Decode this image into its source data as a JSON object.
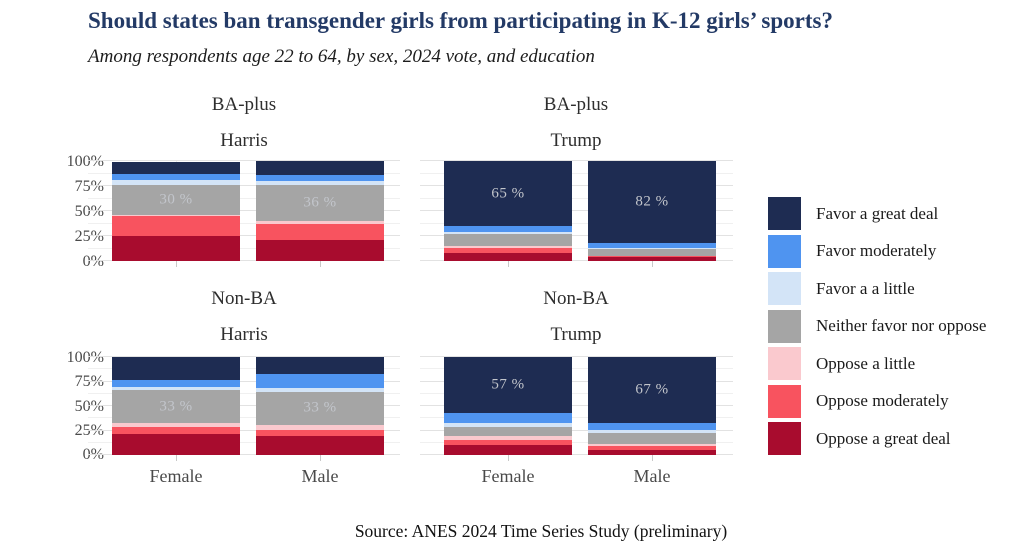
{
  "title": "Should states ban transgender girls from participating in K-12 girls’ sports?",
  "subtitle": "Among respondents age 22 to 64, by sex, 2024 vote, and education",
  "caption": "Source: ANES 2024 Time Series Study (preliminary)",
  "axis": {
    "y_ticks": [
      "100%",
      "75%",
      "50%",
      "25%",
      "0%"
    ],
    "x_labels": [
      "Female",
      "Male"
    ]
  },
  "legend": {
    "items": [
      {
        "label": "Favor a great deal",
        "color": "#1e2c52"
      },
      {
        "label": "Favor moderately",
        "color": "#4f94f0"
      },
      {
        "label": "Favor a a little",
        "color": "#d3e4f7"
      },
      {
        "label": "Neither favor nor oppose",
        "color": "#a5a5a5"
      },
      {
        "label": "Oppose a little",
        "color": "#fac9ce"
      },
      {
        "label": "Oppose moderately",
        "color": "#f8535f"
      },
      {
        "label": "Oppose a great deal",
        "color": "#a80c2e"
      }
    ]
  },
  "chart_data": {
    "type": "bar",
    "stacked": true,
    "units": "percent",
    "ylim": [
      0,
      100
    ],
    "y_major_percent": [
      0,
      25,
      50,
      75,
      100
    ],
    "y_minor_percent": [
      12.5,
      37.5,
      62.5,
      87.5
    ],
    "stack_order_bottom_to_top": [
      "Oppose a great deal",
      "Oppose moderately",
      "Oppose a little",
      "Neither favor nor oppose",
      "Favor a a little",
      "Favor moderately",
      "Favor a great deal"
    ],
    "colors": {
      "Favor a great deal": "#1e2c52",
      "Favor moderately": "#4f94f0",
      "Favor a a little": "#d3e4f7",
      "Neither favor nor oppose": "#a5a5a5",
      "Oppose a little": "#fac9ce",
      "Oppose moderately": "#f8535f",
      "Oppose a great deal": "#a80c2e"
    },
    "facets": [
      {
        "education": "BA-plus",
        "vote": "Harris",
        "bars": [
          {
            "sex": "Female",
            "values": [
              25,
              20,
              1,
              30,
              5,
              6,
              12
            ],
            "label": {
              "text": "30 %",
              "segment_index": 3
            }
          },
          {
            "sex": "Male",
            "values": [
              21,
              16,
              3,
              36,
              4,
              6,
              14
            ],
            "label": {
              "text": "36 %",
              "segment_index": 3
            }
          }
        ]
      },
      {
        "education": "BA-plus",
        "vote": "Trump",
        "bars": [
          {
            "sex": "Female",
            "values": [
              8,
              5,
              2,
              12,
              2,
              6,
              65
            ],
            "label": {
              "text": "65 %",
              "segment_index": 6
            }
          },
          {
            "sex": "Male",
            "values": [
              4,
              1,
              0,
              7,
              1,
              5,
              82
            ],
            "label": {
              "text": "82 %",
              "segment_index": 6
            }
          }
        ]
      },
      {
        "education": "Non-BA",
        "vote": "Harris",
        "bars": [
          {
            "sex": "Female",
            "values": [
              21,
              8,
              4,
              33,
              3,
              8,
              23
            ],
            "label": {
              "text": "33 %",
              "segment_index": 3
            }
          },
          {
            "sex": "Male",
            "values": [
              19,
              7,
              5,
              33,
              4,
              15,
              17
            ],
            "label": {
              "text": "33 %",
              "segment_index": 3
            }
          }
        ]
      },
      {
        "education": "Non-BA",
        "vote": "Trump",
        "bars": [
          {
            "sex": "Female",
            "values": [
              10,
              5,
              4,
              10,
              4,
              10,
              57
            ],
            "label": {
              "text": "57 %",
              "segment_index": 6
            }
          },
          {
            "sex": "Male",
            "values": [
              5,
              4,
              2,
              11,
              4,
              7,
              67
            ],
            "label": {
              "text": "67 %",
              "segment_index": 6
            }
          }
        ]
      }
    ]
  }
}
